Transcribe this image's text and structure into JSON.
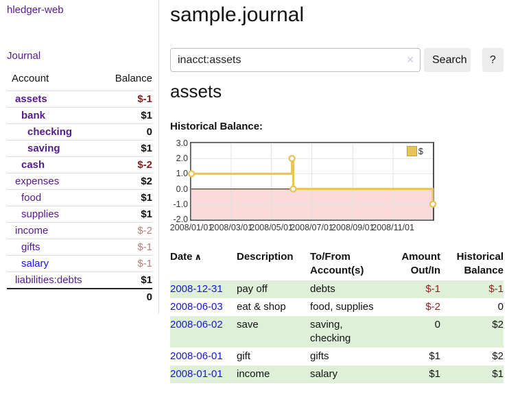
{
  "colors": {
    "link_purple": "#551a8b",
    "link_blue": "#1414e0",
    "negative_strong": "#7f1f1f",
    "negative_soft": "#c07a7a",
    "table_negative": "#8b2222",
    "row_shade_green": "#dff0d8",
    "chart_line_gold": "#e7c35a",
    "chart_negative_pink": "#fbdada",
    "chart_zero_line": "#9e1a1a"
  },
  "sidebar": {
    "brand": "hledger-web",
    "journal_link": "Journal",
    "headers": {
      "account": "Account",
      "balance": "Balance"
    },
    "accounts": [
      {
        "name": "assets",
        "level": 1,
        "bold": true,
        "balance": "$-1",
        "balance_style": "neg_strong",
        "link_style": "purple"
      },
      {
        "name": "bank",
        "level": 2,
        "bold": true,
        "balance": "$1",
        "balance_style": "pos",
        "link_style": "purple"
      },
      {
        "name": "checking",
        "level": 3,
        "bold": true,
        "balance": "0",
        "balance_style": "pos",
        "link_style": "purple"
      },
      {
        "name": "saving",
        "level": 3,
        "bold": true,
        "balance": "$1",
        "balance_style": "pos",
        "link_style": "purple"
      },
      {
        "name": "cash",
        "level": 2,
        "bold": true,
        "balance": "$-2",
        "balance_style": "neg_strong",
        "link_style": "purple"
      },
      {
        "name": "expenses",
        "level": 1,
        "bold": false,
        "balance": "$2",
        "balance_style": "pos",
        "link_style": "purple"
      },
      {
        "name": "food",
        "level": 2,
        "bold": false,
        "balance": "$1",
        "balance_style": "pos",
        "link_style": "purple"
      },
      {
        "name": "supplies",
        "level": 2,
        "bold": false,
        "balance": "$1",
        "balance_style": "pos",
        "link_style": "purple"
      },
      {
        "name": "income",
        "level": 1,
        "bold": false,
        "balance": "$-2",
        "balance_style": "neg_soft",
        "link_style": "purple"
      },
      {
        "name": "gifts",
        "level": 2,
        "bold": false,
        "balance": "$-1",
        "balance_style": "neg_soft",
        "link_style": "purple"
      },
      {
        "name": "salary",
        "level": 2,
        "bold": false,
        "balance": "$-1",
        "balance_style": "neg_soft",
        "link_style": "blue"
      },
      {
        "name": "liabilities:debts",
        "level": 1,
        "bold": false,
        "balance": "$1",
        "balance_style": "pos",
        "link_style": "purple"
      }
    ],
    "total": "0"
  },
  "main": {
    "title": "sample.journal",
    "search": {
      "value": "inacct:assets",
      "clear_icon": "✕",
      "button_label": "Search",
      "help_label": "?"
    },
    "account_heading": "assets"
  },
  "chart_data": {
    "type": "line",
    "step": true,
    "title": "Historical Balance:",
    "series": [
      {
        "name": "$",
        "points": [
          [
            "2008-01-01",
            1
          ],
          [
            "2008-06-01",
            2
          ],
          [
            "2008-06-03",
            0
          ],
          [
            "2008-12-31",
            -1
          ]
        ]
      }
    ],
    "x_start": "2008-01-01",
    "x_end": "2008-12-31",
    "x_ticks": [
      {
        "date": "2008-01-01",
        "label": "2008/01/01"
      },
      {
        "date": "2008-03-01",
        "label": "2008/03/01"
      },
      {
        "date": "2008-05-01",
        "label": "2008/05/01"
      },
      {
        "date": "2008-07-01",
        "label": "2008/07/01"
      },
      {
        "date": "2008-09-01",
        "label": "2008/09/01"
      },
      {
        "date": "2008-11-01",
        "label": "2008/11/01"
      }
    ],
    "y_ticks": [
      3.0,
      2.0,
      1.0,
      0.0,
      -1.0,
      -2.0
    ],
    "ylim": [
      -2,
      3
    ],
    "grid": true,
    "legend": {
      "label": "$",
      "position": "top-right"
    }
  },
  "register": {
    "headers": {
      "date": "Date",
      "sort_indicator": "∧",
      "description": "Description",
      "account": "To/From Account(s)",
      "amount": "Amount Out/In",
      "balance": "Historical Balance"
    },
    "rows": [
      {
        "date": "2008-12-31",
        "description": "pay off",
        "account": "debts",
        "amount": "$-1",
        "amount_negative": true,
        "balance": "$-1",
        "balance_negative": true,
        "shaded": true
      },
      {
        "date": "2008-06-03",
        "description": "eat & shop",
        "account": "food, supplies",
        "amount": "$-2",
        "amount_negative": true,
        "balance": "0",
        "balance_negative": false,
        "shaded": false
      },
      {
        "date": "2008-06-02",
        "description": "save",
        "account": "saving,\nchecking",
        "amount": "0",
        "amount_negative": false,
        "balance": "$2",
        "balance_negative": false,
        "shaded": true
      },
      {
        "date": "2008-06-01",
        "description": "gift",
        "account": "gifts",
        "amount": "$1",
        "amount_negative": false,
        "balance": "$2",
        "balance_negative": false,
        "shaded": false
      },
      {
        "date": "2008-01-01",
        "description": "income",
        "account": "salary",
        "amount": "$1",
        "amount_negative": false,
        "balance": "$1",
        "balance_negative": false,
        "shaded": true
      }
    ]
  }
}
